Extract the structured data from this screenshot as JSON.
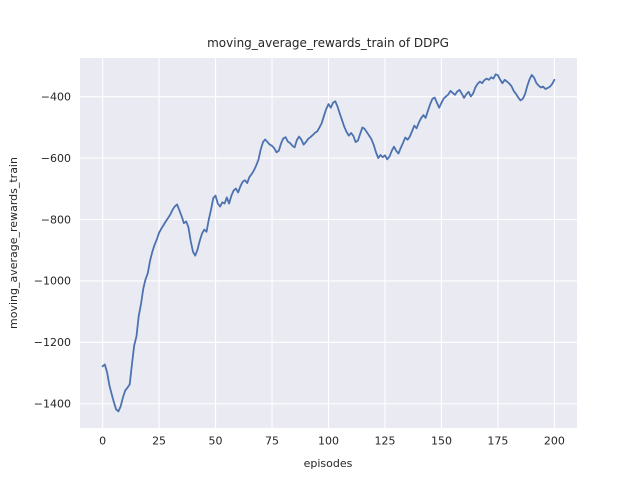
{
  "chart_data": {
    "type": "line",
    "title": "moving_average_rewards_train of DDPG",
    "xlabel": "episodes",
    "ylabel": "moving_average_rewards_train",
    "legend": false,
    "grid": true,
    "x_ticks": [
      0,
      25,
      50,
      75,
      100,
      125,
      150,
      175,
      200
    ],
    "y_ticks": [
      -400,
      -600,
      -800,
      -1000,
      -1200,
      -1400
    ],
    "xlim": [
      -10,
      210
    ],
    "ylim": [
      -1479,
      -274
    ],
    "line_color": "#4c72b0",
    "plot_bg_color": "#eaeaf2",
    "grid_color": "#ffffff",
    "text_color": "#262626",
    "x": [
      0,
      1,
      2,
      3,
      4,
      5,
      6,
      7,
      8,
      9,
      10,
      11,
      12,
      13,
      14,
      15,
      16,
      17,
      18,
      19,
      20,
      21,
      22,
      23,
      24,
      25,
      26,
      27,
      28,
      29,
      30,
      31,
      32,
      33,
      34,
      35,
      36,
      37,
      38,
      39,
      40,
      41,
      42,
      43,
      44,
      45,
      46,
      47,
      48,
      49,
      50,
      51,
      52,
      53,
      54,
      55,
      56,
      57,
      58,
      59,
      60,
      61,
      62,
      63,
      64,
      65,
      66,
      67,
      68,
      69,
      70,
      71,
      72,
      73,
      74,
      75,
      76,
      77,
      78,
      79,
      80,
      81,
      82,
      83,
      84,
      85,
      86,
      87,
      88,
      89,
      90,
      91,
      92,
      93,
      94,
      95,
      96,
      97,
      98,
      99,
      100,
      101,
      102,
      103,
      104,
      105,
      106,
      107,
      108,
      109,
      110,
      111,
      112,
      113,
      114,
      115,
      116,
      117,
      118,
      119,
      120,
      121,
      122,
      123,
      124,
      125,
      126,
      127,
      128,
      129,
      130,
      131,
      132,
      133,
      134,
      135,
      136,
      137,
      138,
      139,
      140,
      141,
      142,
      143,
      144,
      145,
      146,
      147,
      148,
      149,
      150,
      151,
      152,
      153,
      154,
      155,
      156,
      157,
      158,
      159,
      160,
      161,
      162,
      163,
      164,
      165,
      166,
      167,
      168,
      169,
      170,
      171,
      172,
      173,
      174,
      175,
      176,
      177,
      178,
      179,
      180,
      181,
      182,
      183,
      184,
      185,
      186,
      187,
      188,
      189,
      190,
      191,
      192,
      193,
      194,
      195,
      196,
      197,
      198,
      199,
      200
    ],
    "y": [
      -1278,
      -1272,
      -1298,
      -1340,
      -1368,
      -1395,
      -1418,
      -1425,
      -1408,
      -1380,
      -1357,
      -1348,
      -1337,
      -1270,
      -1210,
      -1180,
      -1115,
      -1075,
      -1025,
      -995,
      -975,
      -935,
      -905,
      -882,
      -865,
      -843,
      -830,
      -818,
      -806,
      -795,
      -783,
      -768,
      -757,
      -751,
      -770,
      -790,
      -812,
      -806,
      -825,
      -870,
      -905,
      -918,
      -898,
      -870,
      -846,
      -833,
      -840,
      -800,
      -768,
      -730,
      -722,
      -748,
      -758,
      -744,
      -748,
      -728,
      -748,
      -722,
      -706,
      -699,
      -712,
      -692,
      -677,
      -672,
      -681,
      -662,
      -652,
      -640,
      -624,
      -605,
      -572,
      -548,
      -539,
      -548,
      -556,
      -560,
      -568,
      -581,
      -576,
      -552,
      -536,
      -532,
      -546,
      -551,
      -560,
      -565,
      -541,
      -530,
      -540,
      -556,
      -548,
      -537,
      -532,
      -525,
      -518,
      -513,
      -500,
      -486,
      -462,
      -440,
      -424,
      -436,
      -420,
      -415,
      -432,
      -455,
      -477,
      -498,
      -515,
      -527,
      -518,
      -528,
      -548,
      -543,
      -522,
      -500,
      -505,
      -516,
      -527,
      -538,
      -557,
      -580,
      -600,
      -590,
      -597,
      -591,
      -604,
      -595,
      -576,
      -563,
      -577,
      -585,
      -566,
      -550,
      -533,
      -540,
      -530,
      -512,
      -494,
      -503,
      -484,
      -470,
      -460,
      -469,
      -446,
      -424,
      -407,
      -403,
      -420,
      -436,
      -420,
      -406,
      -399,
      -393,
      -381,
      -388,
      -394,
      -383,
      -378,
      -390,
      -404,
      -392,
      -384,
      -399,
      -390,
      -370,
      -358,
      -351,
      -356,
      -346,
      -341,
      -345,
      -337,
      -341,
      -327,
      -330,
      -345,
      -356,
      -345,
      -351,
      -357,
      -366,
      -381,
      -391,
      -403,
      -412,
      -407,
      -392,
      -365,
      -343,
      -329,
      -338,
      -355,
      -364,
      -370,
      -367,
      -375,
      -372,
      -367,
      -359,
      -345
    ]
  }
}
